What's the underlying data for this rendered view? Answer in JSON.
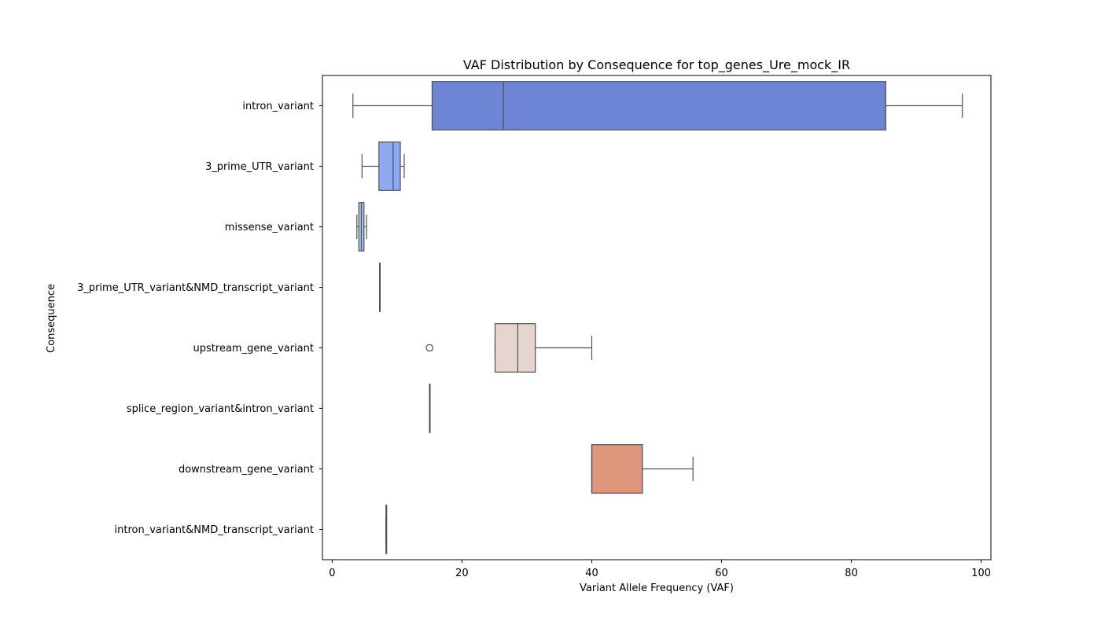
{
  "chart_data": {
    "type": "box",
    "orientation": "horizontal",
    "title": "VAF Distribution by Consequence for top_genes_Ure_mock_IR",
    "xlabel": "Variant Allele Frequency (VAF)",
    "ylabel": "Consequence",
    "xlim": [
      -1.5,
      101.5
    ],
    "xticks": [
      0,
      20,
      40,
      60,
      80,
      100
    ],
    "grid": false,
    "categories": [
      "intron_variant",
      "3_prime_UTR_variant",
      "missense_variant",
      "3_prime_UTR_variant&NMD_transcript_variant",
      "upstream_gene_variant",
      "splice_region_variant&intron_variant",
      "downstream_gene_variant",
      "intron_variant&NMD_transcript_variant"
    ],
    "boxes": [
      {
        "whisker_low": 3.2,
        "q1": 15.4,
        "median": 26.4,
        "q3": 85.3,
        "whisker_high": 97.1,
        "outliers": [],
        "color": "#6e85d6"
      },
      {
        "whisker_low": 4.6,
        "q1": 7.2,
        "median": 9.4,
        "q3": 10.5,
        "whisker_high": 11.1,
        "outliers": [],
        "color": "#8da9f1"
      },
      {
        "whisker_low": 3.8,
        "q1": 4.1,
        "median": 4.5,
        "q3": 4.9,
        "whisker_high": 5.3,
        "outliers": [],
        "color": "#a9c1f7"
      },
      {
        "whisker_low": 7.3,
        "q1": 7.3,
        "median": 7.3,
        "q3": 7.3,
        "whisker_high": 7.3,
        "outliers": [],
        "color": "#c6d5f2"
      },
      {
        "whisker_low": 25.1,
        "q1": 25.1,
        "median": 28.6,
        "q3": 31.3,
        "whisker_high": 40.0,
        "outliers": [
          15.0
        ],
        "color": "#e6d5cf"
      },
      {
        "whisker_low": 15.0,
        "q1": 15.0,
        "median": 15.0,
        "q3": 15.0,
        "whisker_high": 15.0,
        "outliers": [],
        "color": "#efc6b1"
      },
      {
        "whisker_low": 40.0,
        "q1": 40.0,
        "median": 40.0,
        "q3": 47.8,
        "whisker_high": 55.6,
        "outliers": [],
        "color": "#e0957d"
      },
      {
        "whisker_low": 8.3,
        "q1": 8.3,
        "median": 8.3,
        "q3": 8.3,
        "whisker_high": 8.3,
        "outliers": [],
        "color": "#d06a55"
      }
    ]
  }
}
